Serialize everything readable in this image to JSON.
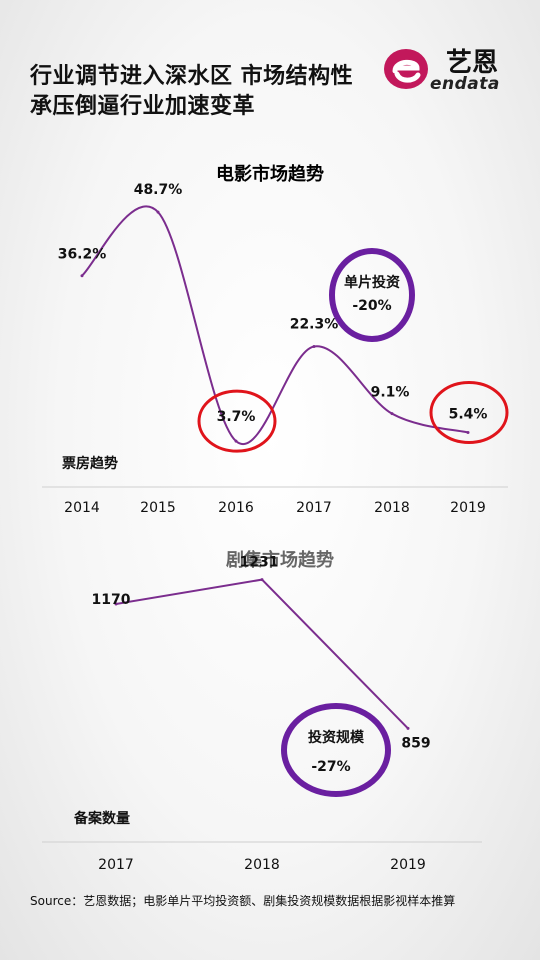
{
  "header": {
    "title_line1": "行业调节进入深水区  市场结构性",
    "title_line2": "承压倒逼行业加速变革",
    "logo_cn": "艺恩",
    "logo_en": "endata"
  },
  "colors": {
    "line": "#7b2d8e",
    "purple_ring": "#6a1fa0",
    "red_ring": "#e0141b",
    "logo_magenta": "#c2185b"
  },
  "chart_data": [
    {
      "type": "line",
      "title": "电影市场趋势",
      "ylabel": "票房趋势",
      "categories": [
        "2014",
        "2015",
        "2016",
        "2017",
        "2018",
        "2019"
      ],
      "values": [
        36.2,
        48.7,
        3.7,
        22.3,
        9.1,
        5.4
      ],
      "value_labels": [
        "36.2%",
        "48.7%",
        "3.7%",
        "22.3%",
        "9.1%",
        "5.4%"
      ],
      "unit": "%",
      "ylim": [
        0,
        55
      ],
      "highlight_indices": [
        2,
        5
      ],
      "callout": {
        "label": "单片投资",
        "value": "-20%"
      }
    },
    {
      "type": "line",
      "title": "剧集市场趋势",
      "ylabel": "备案数量",
      "categories": [
        "2017",
        "2018",
        "2019"
      ],
      "values": [
        1170,
        1231,
        859
      ],
      "value_labels": [
        "1170",
        "1231",
        "859"
      ],
      "ylim": [
        600,
        1400
      ],
      "callout": {
        "label": "投资规模",
        "value": "-27%"
      }
    }
  ],
  "footer": {
    "source": "Source：艺恩数据；电影单片平均投资额、剧集投资规模数据根据影视样本推算"
  }
}
